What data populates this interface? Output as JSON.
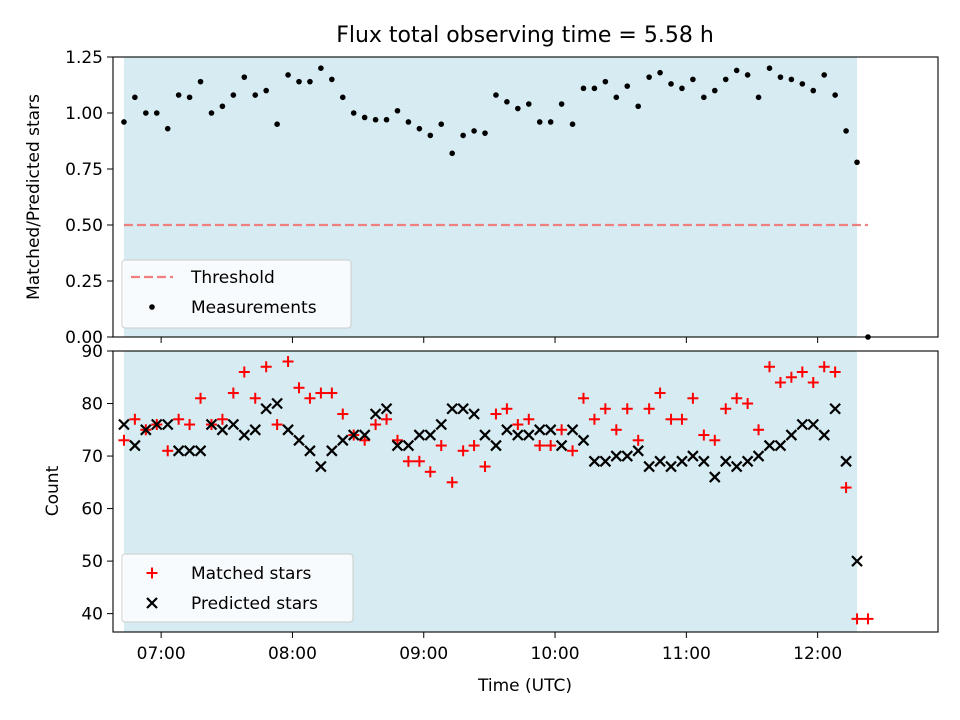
{
  "chart_data": [
    {
      "type": "scatter",
      "title": "Flux total observing time = 5.58 h",
      "xlabel": "",
      "ylabel": "Matched/Predicted stars",
      "xlim": [
        "06:38",
        "12:55"
      ],
      "ylim": [
        0,
        1.25
      ],
      "x_tick_labels": [
        "07:00",
        "08:00",
        "09:00",
        "10:00",
        "11:00",
        "12:00"
      ],
      "y_ticks": [
        0,
        0.25,
        0.5,
        0.75,
        1.0,
        1.25
      ],
      "y_tick_labels": [
        "0.00",
        "0.25",
        "0.50",
        "0.75",
        "1.00",
        "1.25"
      ],
      "shaded_span": [
        "06:43",
        "12:18"
      ],
      "shade_color": "#add8e6",
      "legend_position": "lower left",
      "threshold": {
        "name": "Threshold",
        "value": 0.5,
        "x_range": [
          "06:43",
          "12:23"
        ],
        "color": "#f08080"
      },
      "series": [
        {
          "name": "Measurements",
          "color": "#000000",
          "marker": "dot",
          "x": [
            "06:43",
            "06:48",
            "06:53",
            "06:58",
            "07:03",
            "07:08",
            "07:13",
            "07:18",
            "07:23",
            "07:28",
            "07:33",
            "07:38",
            "07:43",
            "07:48",
            "07:53",
            "07:58",
            "08:03",
            "08:08",
            "08:13",
            "08:18",
            "08:23",
            "08:28",
            "08:33",
            "08:38",
            "08:43",
            "08:48",
            "08:53",
            "08:58",
            "09:03",
            "09:08",
            "09:13",
            "09:18",
            "09:23",
            "09:28",
            "09:33",
            "09:38",
            "09:43",
            "09:48",
            "09:53",
            "09:58",
            "10:03",
            "10:08",
            "10:13",
            "10:18",
            "10:23",
            "10:28",
            "10:33",
            "10:38",
            "10:43",
            "10:48",
            "10:53",
            "10:58",
            "11:03",
            "11:08",
            "11:13",
            "11:18",
            "11:23",
            "11:28",
            "11:33",
            "11:38",
            "11:43",
            "11:48",
            "11:53",
            "11:58",
            "12:03",
            "12:08",
            "12:13",
            "12:18",
            "12:23"
          ],
          "y": [
            0.96,
            1.07,
            1.0,
            1.0,
            0.93,
            1.08,
            1.07,
            1.14,
            1.0,
            1.03,
            1.08,
            1.16,
            1.08,
            1.1,
            0.95,
            1.17,
            1.14,
            1.14,
            1.2,
            1.15,
            1.07,
            1.0,
            0.98,
            0.97,
            0.97,
            1.01,
            0.96,
            0.93,
            0.9,
            0.95,
            0.82,
            0.9,
            0.92,
            0.91,
            1.08,
            1.05,
            1.02,
            1.04,
            0.96,
            0.96,
            1.04,
            0.95,
            1.11,
            1.11,
            1.14,
            1.07,
            1.12,
            1.03,
            1.16,
            1.18,
            1.13,
            1.11,
            1.15,
            1.07,
            1.1,
            1.15,
            1.19,
            1.17,
            1.07,
            1.2,
            1.16,
            1.15,
            1.13,
            1.1,
            1.17,
            1.08,
            0.92,
            0.78,
            0.0
          ]
        }
      ]
    },
    {
      "type": "scatter",
      "title": "",
      "xlabel": "Time (UTC)",
      "ylabel": "Count",
      "xlim": [
        "06:38",
        "12:55"
      ],
      "ylim": [
        36.5,
        90
      ],
      "x_tick_labels": [
        "07:00",
        "08:00",
        "09:00",
        "10:00",
        "11:00",
        "12:00"
      ],
      "y_ticks": [
        40,
        50,
        60,
        70,
        80,
        90
      ],
      "shaded_span": [
        "06:43",
        "12:18"
      ],
      "shade_color": "#add8e6",
      "legend_position": "lower left",
      "series": [
        {
          "name": "Matched stars",
          "color": "#ff0000",
          "marker": "plus",
          "x": [
            "06:43",
            "06:48",
            "06:53",
            "06:58",
            "07:03",
            "07:08",
            "07:13",
            "07:18",
            "07:23",
            "07:28",
            "07:33",
            "07:38",
            "07:43",
            "07:48",
            "07:53",
            "07:58",
            "08:03",
            "08:08",
            "08:13",
            "08:18",
            "08:23",
            "08:28",
            "08:33",
            "08:38",
            "08:43",
            "08:48",
            "08:53",
            "08:58",
            "09:03",
            "09:08",
            "09:13",
            "09:18",
            "09:23",
            "09:28",
            "09:33",
            "09:38",
            "09:43",
            "09:48",
            "09:53",
            "09:58",
            "10:03",
            "10:08",
            "10:13",
            "10:18",
            "10:23",
            "10:28",
            "10:33",
            "10:38",
            "10:43",
            "10:48",
            "10:53",
            "10:58",
            "11:03",
            "11:08",
            "11:13",
            "11:18",
            "11:23",
            "11:28",
            "11:33",
            "11:38",
            "11:43",
            "11:48",
            "11:53",
            "11:58",
            "12:03",
            "12:08",
            "12:13",
            "12:18",
            "12:23"
          ],
          "y": [
            73,
            77,
            75,
            76,
            71,
            77,
            76,
            81,
            76,
            77,
            82,
            86,
            81,
            87,
            76,
            88,
            83,
            81,
            82,
            82,
            78,
            74,
            73,
            76,
            77,
            73,
            69,
            69,
            67,
            72,
            65,
            71,
            72,
            68,
            78,
            79,
            76,
            77,
            72,
            72,
            75,
            71,
            81,
            77,
            79,
            75,
            79,
            73,
            79,
            82,
            77,
            77,
            81,
            74,
            73,
            79,
            81,
            80,
            75,
            87,
            84,
            85,
            86,
            84,
            87,
            86,
            64,
            39,
            39
          ]
        },
        {
          "name": "Predicted stars",
          "color": "#000000",
          "marker": "x",
          "x": [
            "06:43",
            "06:48",
            "06:53",
            "06:58",
            "07:03",
            "07:08",
            "07:13",
            "07:18",
            "07:23",
            "07:28",
            "07:33",
            "07:38",
            "07:43",
            "07:48",
            "07:53",
            "07:58",
            "08:03",
            "08:08",
            "08:13",
            "08:18",
            "08:23",
            "08:28",
            "08:33",
            "08:38",
            "08:43",
            "08:48",
            "08:53",
            "08:58",
            "09:03",
            "09:08",
            "09:13",
            "09:18",
            "09:23",
            "09:28",
            "09:33",
            "09:38",
            "09:43",
            "09:48",
            "09:53",
            "09:58",
            "10:03",
            "10:08",
            "10:13",
            "10:18",
            "10:23",
            "10:28",
            "10:33",
            "10:38",
            "10:43",
            "10:48",
            "10:53",
            "10:58",
            "11:03",
            "11:08",
            "11:13",
            "11:18",
            "11:23",
            "11:28",
            "11:33",
            "11:38",
            "11:43",
            "11:48",
            "11:53",
            "11:58",
            "12:03",
            "12:08",
            "12:13",
            "12:18"
          ],
          "y": [
            76,
            72,
            75,
            76,
            76,
            71,
            71,
            71,
            76,
            75,
            76,
            74,
            75,
            79,
            80,
            75,
            73,
            71,
            68,
            71,
            73,
            74,
            74,
            78,
            79,
            72,
            72,
            74,
            74,
            76,
            79,
            79,
            78,
            74,
            72,
            75,
            74,
            74,
            75,
            75,
            72,
            75,
            73,
            69,
            69,
            70,
            70,
            71,
            68,
            69,
            68,
            69,
            70,
            69,
            66,
            69,
            68,
            69,
            70,
            72,
            72,
            74,
            76,
            76,
            74,
            79,
            69,
            50
          ]
        }
      ]
    }
  ]
}
